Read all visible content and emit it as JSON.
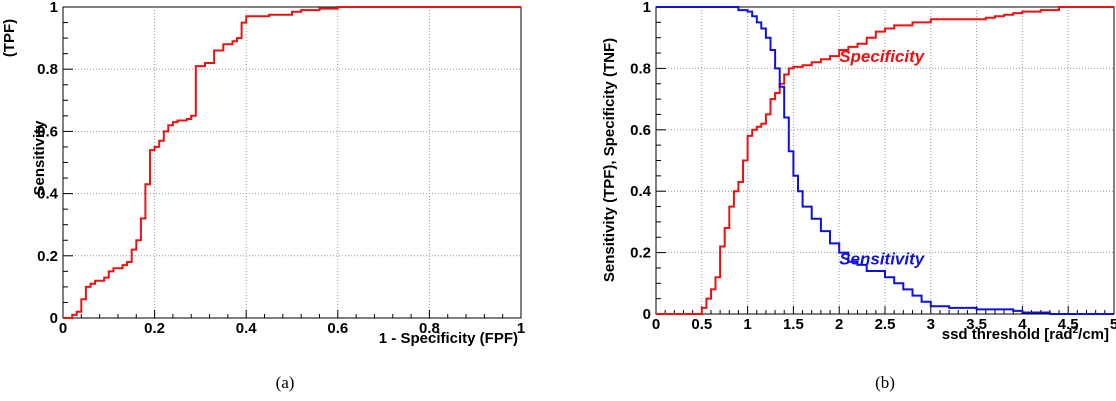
{
  "chart_data": [
    {
      "type": "line",
      "caption": "(a)",
      "xlabel": "1 - Specificity     (FPF)",
      "ylabel_main": "Sensitivity",
      "ylabel_aux": "(TPF)",
      "xlim": [
        0,
        1
      ],
      "ylim": [
        0,
        1
      ],
      "xticks": [
        "0",
        "0.2",
        "0.4",
        "0.6",
        "0.8",
        "1"
      ],
      "yticks": [
        "0",
        "0.2",
        "0.4",
        "0.6",
        "0.8",
        "1"
      ],
      "grid": true,
      "step": true,
      "series": [
        {
          "color": "#ee1111",
          "x": [
            0,
            0.02,
            0.03,
            0.04,
            0.05,
            0.06,
            0.07,
            0.09,
            0.1,
            0.11,
            0.13,
            0.14,
            0.15,
            0.16,
            0.17,
            0.18,
            0.19,
            0.2,
            0.21,
            0.22,
            0.23,
            0.24,
            0.25,
            0.27,
            0.28,
            0.29,
            0.31,
            0.33,
            0.35,
            0.37,
            0.38,
            0.39,
            0.4,
            0.42,
            0.45,
            0.5,
            0.52,
            0.56,
            0.6,
            0.62,
            0.65,
            0.7,
            0.8,
            0.9,
            1.0
          ],
          "y": [
            0,
            0.01,
            0.02,
            0.06,
            0.1,
            0.11,
            0.12,
            0.13,
            0.15,
            0.16,
            0.17,
            0.18,
            0.22,
            0.25,
            0.32,
            0.43,
            0.54,
            0.55,
            0.57,
            0.6,
            0.62,
            0.63,
            0.635,
            0.64,
            0.65,
            0.81,
            0.82,
            0.86,
            0.88,
            0.89,
            0.9,
            0.95,
            0.97,
            0.97,
            0.975,
            0.985,
            0.99,
            0.995,
            1.0,
            1.0,
            1.0,
            1.0,
            1.0,
            1.0,
            1.0
          ]
        }
      ]
    },
    {
      "type": "line",
      "caption": "(b)",
      "xlabel": "ssd threshold [rad",
      "xlabel_sup": "2",
      "xlabel_tail": "/cm]",
      "ylabel": "Sensitivity (TPF),   Specificity (TNF)",
      "xlim": [
        0,
        5
      ],
      "ylim": [
        0,
        1
      ],
      "xticks": [
        "0",
        "0.5",
        "1",
        "1.5",
        "2",
        "2.5",
        "3",
        "3.5",
        "4",
        "4.5",
        "5"
      ],
      "yticks": [
        "0",
        "0.2",
        "0.4",
        "0.6",
        "0.8",
        "1"
      ],
      "grid": true,
      "step": true,
      "annotations": [
        {
          "text": "Specificity",
          "x": 2.0,
          "y": 0.84,
          "color": "#ee1111"
        },
        {
          "text": "Sensitivity",
          "x": 2.0,
          "y": 0.18,
          "color": "#1111dd"
        }
      ],
      "series": [
        {
          "name": "Specificity",
          "color": "#ee1111",
          "x": [
            0,
            0.45,
            0.5,
            0.55,
            0.6,
            0.65,
            0.7,
            0.75,
            0.8,
            0.85,
            0.9,
            0.95,
            1.0,
            1.05,
            1.1,
            1.15,
            1.2,
            1.25,
            1.3,
            1.35,
            1.4,
            1.45,
            1.5,
            1.6,
            1.7,
            1.8,
            1.9,
            2.0,
            2.1,
            2.2,
            2.3,
            2.4,
            2.5,
            2.6,
            2.8,
            3.0,
            3.2,
            3.4,
            3.6,
            3.7,
            3.8,
            3.9,
            4.0,
            4.2,
            4.4,
            4.6,
            5.0
          ],
          "y": [
            0,
            0,
            0.02,
            0.05,
            0.08,
            0.12,
            0.22,
            0.28,
            0.35,
            0.4,
            0.43,
            0.5,
            0.58,
            0.6,
            0.61,
            0.62,
            0.65,
            0.7,
            0.72,
            0.75,
            0.78,
            0.8,
            0.805,
            0.81,
            0.82,
            0.83,
            0.84,
            0.86,
            0.87,
            0.88,
            0.9,
            0.92,
            0.93,
            0.94,
            0.95,
            0.96,
            0.96,
            0.96,
            0.965,
            0.97,
            0.975,
            0.98,
            0.985,
            0.99,
            1.0,
            1.0,
            1.0
          ]
        },
        {
          "name": "Sensitivity",
          "color": "#1111dd",
          "x": [
            0,
            0.8,
            0.9,
            1.0,
            1.05,
            1.1,
            1.15,
            1.2,
            1.25,
            1.3,
            1.35,
            1.4,
            1.45,
            1.5,
            1.55,
            1.6,
            1.7,
            1.8,
            1.9,
            2.0,
            2.1,
            2.2,
            2.3,
            2.5,
            2.6,
            2.7,
            2.8,
            2.9,
            3.0,
            3.2,
            3.5,
            3.9,
            4.0,
            4.3,
            5.0
          ],
          "y": [
            1.0,
            1.0,
            0.99,
            0.985,
            0.97,
            0.95,
            0.93,
            0.9,
            0.86,
            0.8,
            0.74,
            0.64,
            0.53,
            0.45,
            0.4,
            0.35,
            0.31,
            0.27,
            0.23,
            0.2,
            0.17,
            0.16,
            0.14,
            0.12,
            0.1,
            0.08,
            0.06,
            0.04,
            0.025,
            0.02,
            0.015,
            0.01,
            0.005,
            0.0,
            0.0
          ]
        }
      ]
    }
  ]
}
